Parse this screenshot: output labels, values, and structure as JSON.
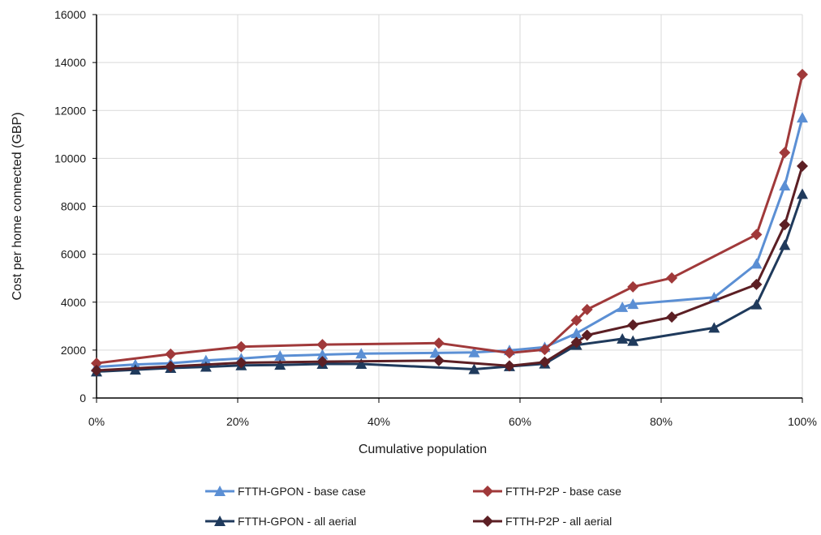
{
  "chart_data": {
    "type": "line",
    "title": "",
    "xlabel": "Cumulative population",
    "ylabel": "Cost per home connected (GBP)",
    "xlim": [
      0,
      100
    ],
    "ylim": [
      0,
      16000
    ],
    "x_ticks": [
      "0%",
      "20%",
      "40%",
      "60%",
      "80%",
      "100%"
    ],
    "x_tick_values": [
      0,
      20,
      40,
      60,
      80,
      100
    ],
    "y_ticks": [
      "0",
      "2000",
      "4000",
      "6000",
      "8000",
      "10000",
      "12000",
      "14000",
      "16000"
    ],
    "y_tick_values": [
      0,
      2000,
      4000,
      6000,
      8000,
      10000,
      12000,
      14000,
      16000
    ],
    "grid": true,
    "legend_position": "bottom",
    "series": [
      {
        "name": "FTTH-GPON - base case",
        "color": "#5b8fd4",
        "marker": "triangle",
        "points": [
          [
            0,
            1300
          ],
          [
            5.5,
            1400
          ],
          [
            10.5,
            1450
          ],
          [
            15.5,
            1570
          ],
          [
            20.5,
            1650
          ],
          [
            26,
            1760
          ],
          [
            32,
            1810
          ],
          [
            37.5,
            1850
          ],
          [
            48,
            1880
          ],
          [
            53.5,
            1900
          ],
          [
            58.5,
            1990
          ],
          [
            63.5,
            2120
          ],
          [
            68,
            2700
          ],
          [
            74.5,
            3790
          ],
          [
            76,
            3920
          ],
          [
            87.5,
            4200
          ],
          [
            93.5,
            5600
          ],
          [
            97.5,
            8860
          ],
          [
            100,
            11700
          ]
        ]
      },
      {
        "name": "FTTH-P2P - base case",
        "color": "#a0393a",
        "marker": "diamond",
        "points": [
          [
            0,
            1450
          ],
          [
            10.5,
            1830
          ],
          [
            20.5,
            2140
          ],
          [
            32,
            2230
          ],
          [
            48.5,
            2290
          ],
          [
            58.5,
            1880
          ],
          [
            63.5,
            2020
          ],
          [
            68,
            3240
          ],
          [
            69.5,
            3690
          ],
          [
            76,
            4640
          ],
          [
            81.5,
            5010
          ],
          [
            93.5,
            6820
          ],
          [
            97.5,
            10240
          ],
          [
            100,
            13500
          ]
        ]
      },
      {
        "name": "FTTH-GPON - all aerial",
        "color": "#1f3a5c",
        "marker": "triangle",
        "points": [
          [
            0,
            1100
          ],
          [
            5.5,
            1180
          ],
          [
            10.5,
            1250
          ],
          [
            15.5,
            1300
          ],
          [
            20.5,
            1360
          ],
          [
            26,
            1380
          ],
          [
            32,
            1420
          ],
          [
            37.5,
            1420
          ],
          [
            53.5,
            1200
          ],
          [
            58.5,
            1320
          ],
          [
            63.5,
            1430
          ],
          [
            68,
            2210
          ],
          [
            74.5,
            2470
          ],
          [
            76,
            2380
          ],
          [
            87.5,
            2930
          ],
          [
            93.5,
            3900
          ],
          [
            97.5,
            6380
          ],
          [
            100,
            8510
          ]
        ]
      },
      {
        "name": "FTTH-P2P - all aerial",
        "color": "#5c1f24",
        "marker": "diamond",
        "points": [
          [
            0,
            1150
          ],
          [
            10.5,
            1320
          ],
          [
            20.5,
            1470
          ],
          [
            32,
            1520
          ],
          [
            48.5,
            1560
          ],
          [
            58.5,
            1340
          ],
          [
            63.5,
            1500
          ],
          [
            68,
            2320
          ],
          [
            69.5,
            2620
          ],
          [
            76,
            3050
          ],
          [
            81.5,
            3380
          ],
          [
            93.5,
            4740
          ],
          [
            97.5,
            7230
          ],
          [
            100,
            9680
          ]
        ]
      }
    ]
  }
}
